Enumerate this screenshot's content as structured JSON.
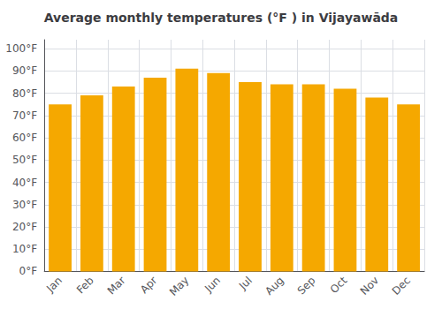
{
  "chart_data": {
    "type": "bar",
    "title": "Average monthly temperatures (°F ) in Vijayawāda",
    "categories": [
      "Jan",
      "Feb",
      "Mar",
      "Apr",
      "May",
      "Jun",
      "Jul",
      "Aug",
      "Sep",
      "Oct",
      "Nov",
      "Dec"
    ],
    "values": [
      75,
      79,
      83,
      87,
      91,
      89,
      85,
      84,
      84,
      82,
      78,
      75
    ],
    "color": "#F5A800",
    "ylim": [
      0,
      104
    ],
    "yticks": [
      {
        "value": 0,
        "label": "0°F"
      },
      {
        "value": 10,
        "label": "10°F"
      },
      {
        "value": 20,
        "label": "20°F"
      },
      {
        "value": 30,
        "label": "30°F"
      },
      {
        "value": 40,
        "label": "40°F"
      },
      {
        "value": 50,
        "label": "50°F"
      },
      {
        "value": 60,
        "label": "60°F"
      },
      {
        "value": 70,
        "label": "70°F"
      },
      {
        "value": 80,
        "label": "80°F"
      },
      {
        "value": 90,
        "label": "90°F"
      },
      {
        "value": 100,
        "label": "100°F"
      }
    ],
    "grid": true
  }
}
